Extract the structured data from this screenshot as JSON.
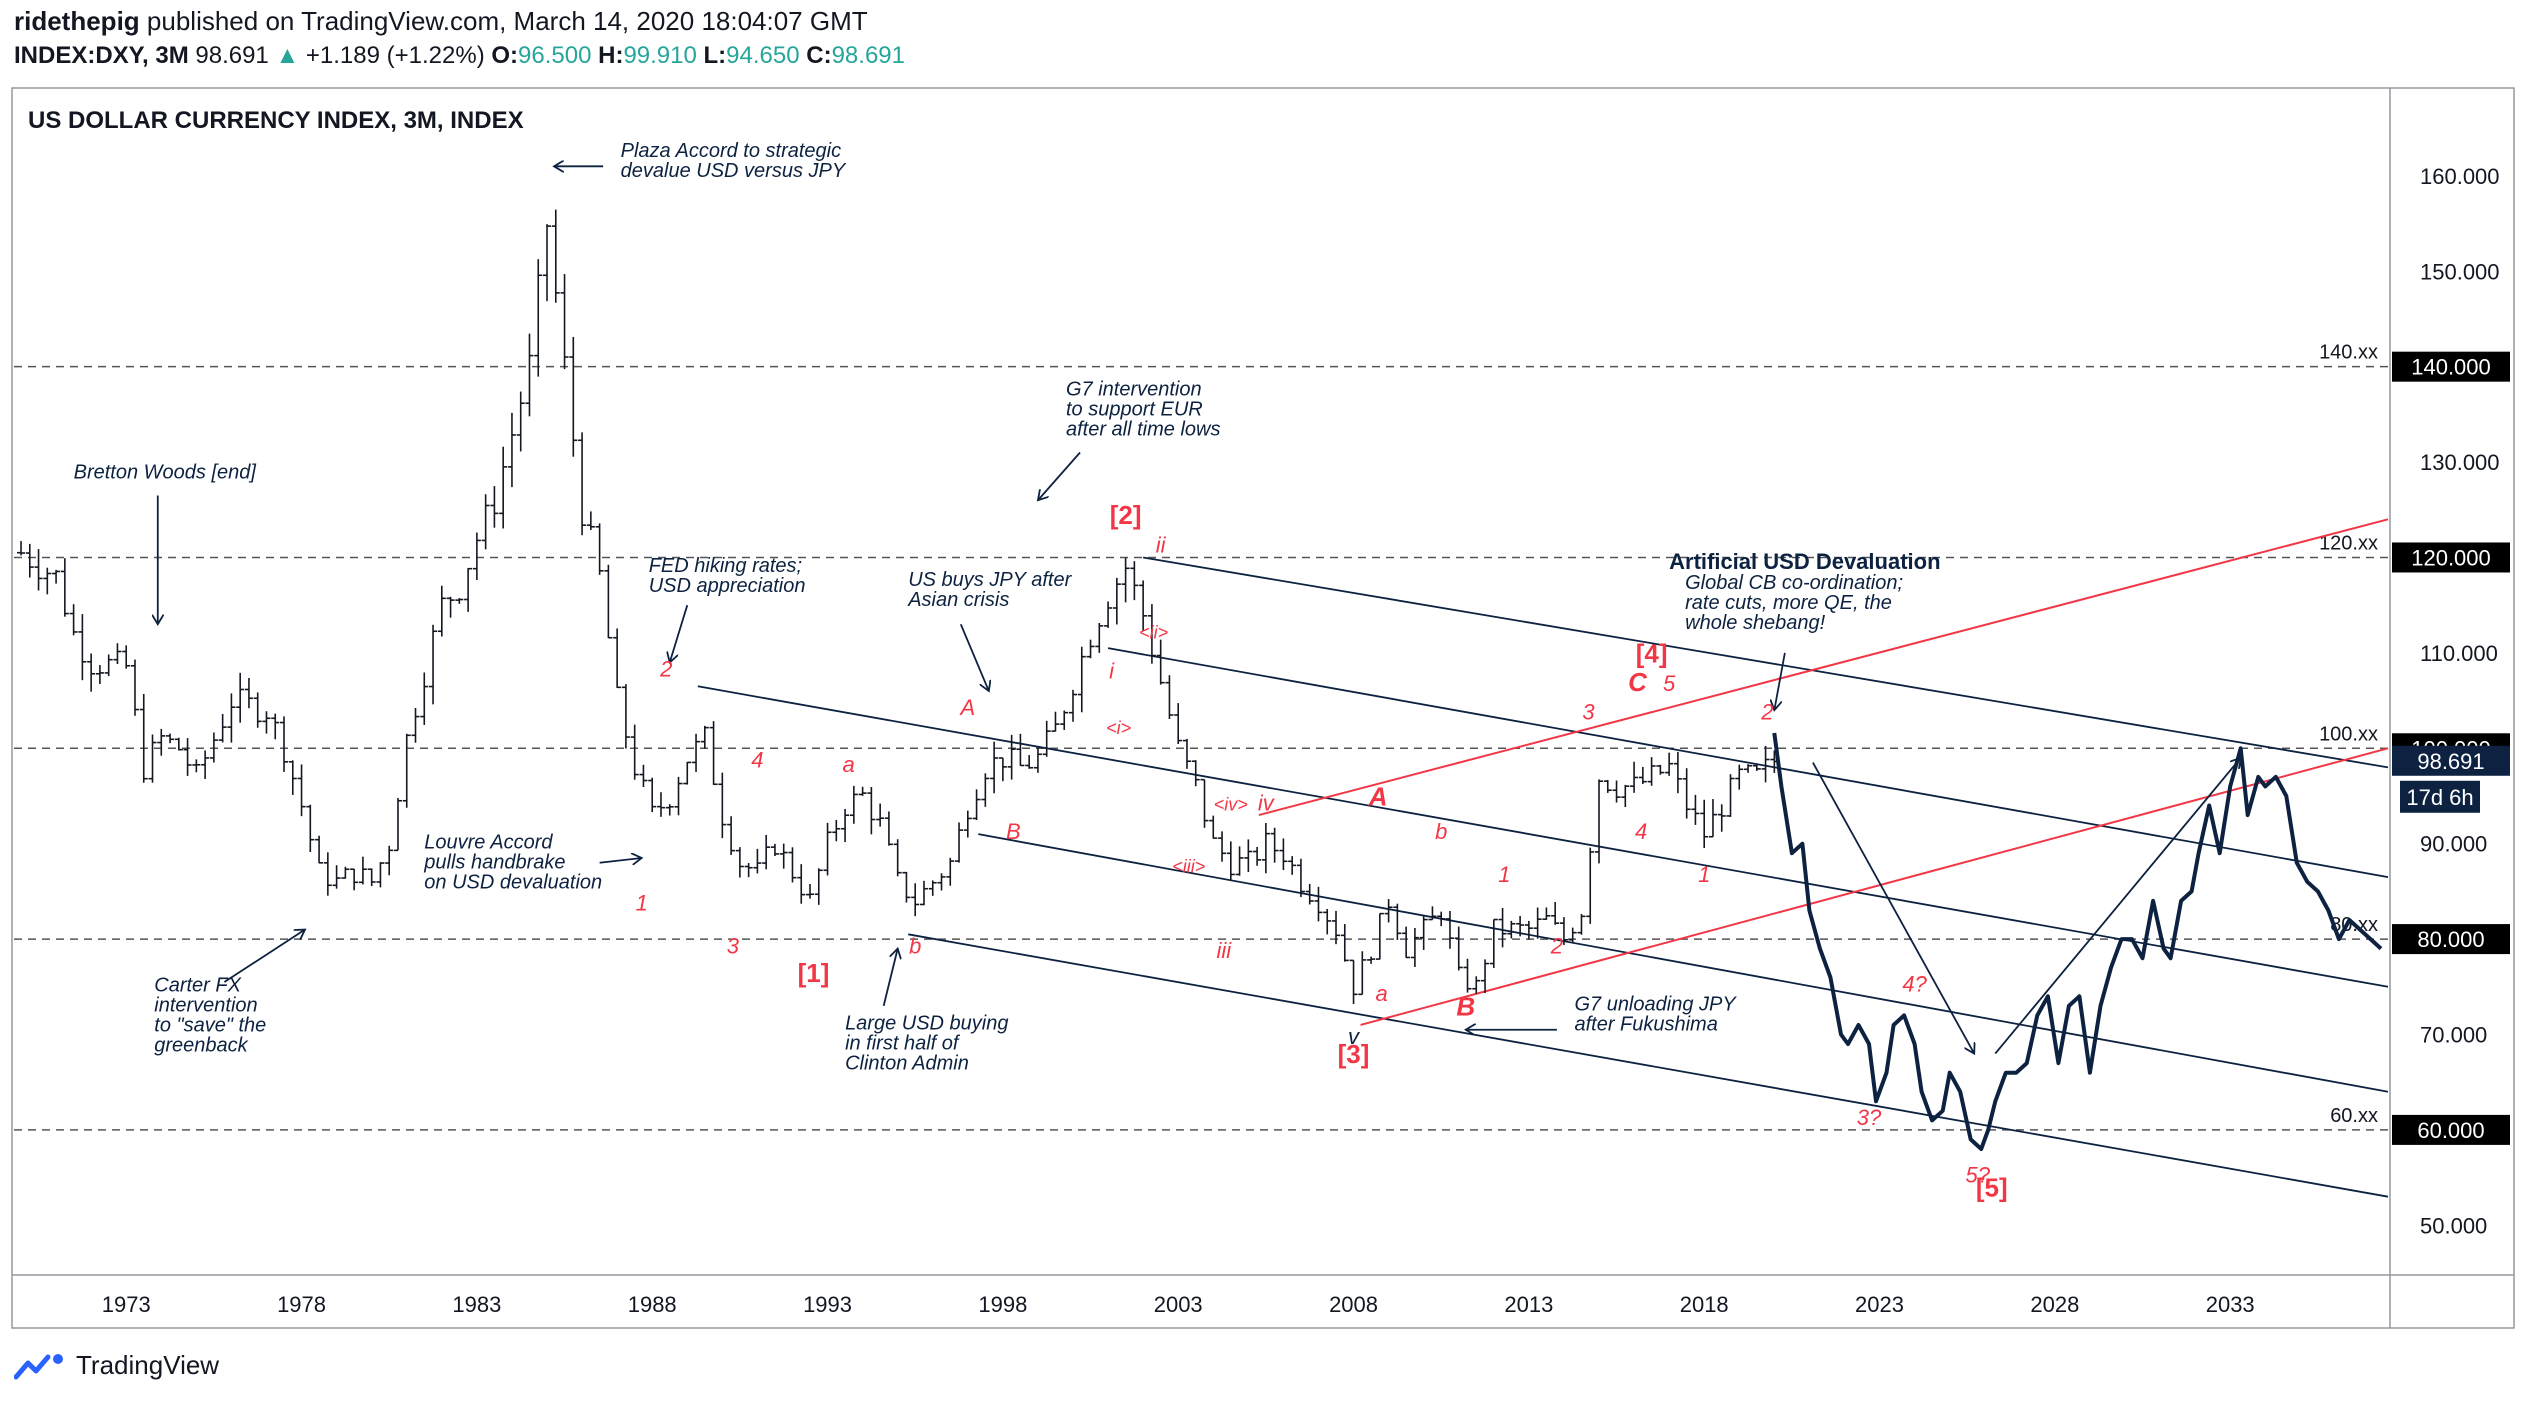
{
  "header": {
    "author": "ridethepig",
    "published_text": "published on TradingView.com, March 14, 2020 18:04:07 GMT",
    "symbol": "INDEX:DXY, 3M",
    "last": "98.691",
    "change": "+1.189 (+1.22%)",
    "o_label": "O:",
    "o_value": "96.500",
    "h_label": "H:",
    "h_value": "99.910",
    "l_label": "L:",
    "l_value": "94.650",
    "c_label": "C:",
    "c_value": "98.691"
  },
  "footer": {
    "brand": "TradingView"
  },
  "colors": {
    "navy": "#0d2240",
    "red": "#f23645",
    "up": "#26a69a",
    "bar": "#131722"
  },
  "chart_data": {
    "type": "line",
    "title": "US DOLLAR CURRENCY INDEX, 3M, INDEX",
    "xlim": [
      1969.8,
      2037.5
    ],
    "ylim": [
      45,
      169
    ],
    "x_ticks": [
      1973,
      1978,
      1983,
      1988,
      1993,
      1998,
      2003,
      2008,
      2013,
      2018,
      2023,
      2028,
      2033
    ],
    "y_ticks": [
      "160.000",
      "150.000",
      "130.000",
      "110.000",
      "90.000",
      "70.000",
      "50.000"
    ],
    "y_tick_values": [
      160,
      150,
      130,
      110,
      90,
      70,
      50
    ],
    "highlighted_ticks": [
      {
        "label": "140.000",
        "value": 140
      },
      {
        "label": "120.000",
        "value": 120
      },
      {
        "label": "100.000",
        "value": 100
      },
      {
        "label": "80.000",
        "value": 80
      },
      {
        "label": "60.000",
        "value": 60
      }
    ],
    "current": {
      "label": "98.691",
      "value": 98.691,
      "countdown": "17d 6h"
    },
    "horizontal_levels": [
      {
        "value": 140,
        "label": "140.xx"
      },
      {
        "value": 120,
        "label": "120.xx"
      },
      {
        "value": 100,
        "label": "100.xx"
      },
      {
        "value": 80,
        "label": "80.xx"
      },
      {
        "value": 60,
        "label": "60.xx"
      }
    ],
    "ohlc_path": [
      [
        1970.0,
        120.5
      ],
      [
        1971.0,
        118
      ],
      [
        1971.5,
        112
      ],
      [
        1972.0,
        109
      ],
      [
        1973.0,
        108.5
      ],
      [
        1973.5,
        98
      ],
      [
        1974.0,
        101
      ],
      [
        1974.5,
        100
      ],
      [
        1975.0,
        97
      ],
      [
        1975.5,
        101
      ],
      [
        1976.0,
        105
      ],
      [
        1977.0,
        104
      ],
      [
        1977.5,
        100
      ],
      [
        1978.0,
        94
      ],
      [
        1978.5,
        87
      ],
      [
        1979.0,
        86
      ],
      [
        1979.5,
        87
      ],
      [
        1980.0,
        86
      ],
      [
        1980.5,
        90
      ],
      [
        1981.0,
        101
      ],
      [
        1981.5,
        108
      ],
      [
        1982.0,
        115
      ],
      [
        1982.5,
        117
      ],
      [
        1983.0,
        122
      ],
      [
        1983.5,
        126
      ],
      [
        1984.0,
        133
      ],
      [
        1984.5,
        140
      ],
      [
        1985.0,
        155
      ],
      [
        1985.5,
        140
      ],
      [
        1986.0,
        125
      ],
      [
        1986.5,
        118
      ],
      [
        1987.0,
        105
      ],
      [
        1987.5,
        98
      ],
      [
        1988.0,
        93
      ],
      [
        1988.5,
        95
      ],
      [
        1989.0,
        99
      ],
      [
        1989.5,
        101
      ],
      [
        1990.0,
        93
      ],
      [
        1990.5,
        88
      ],
      [
        1991.0,
        87
      ],
      [
        1991.5,
        90
      ],
      [
        1992.0,
        87
      ],
      [
        1992.5,
        84
      ],
      [
        1993.0,
        90
      ],
      [
        1993.5,
        94
      ],
      [
        1994.0,
        95
      ],
      [
        1994.5,
        92
      ],
      [
        1995.0,
        86
      ],
      [
        1995.5,
        84
      ],
      [
        1996.0,
        86
      ],
      [
        1996.5,
        88
      ],
      [
        1997.0,
        94
      ],
      [
        1997.5,
        98
      ],
      [
        1998.0,
        99
      ],
      [
        1998.5,
        98
      ],
      [
        1999.0,
        99
      ],
      [
        1999.5,
        102
      ],
      [
        2000.0,
        107
      ],
      [
        2000.5,
        112
      ],
      [
        2001.0,
        116
      ],
      [
        2001.5,
        119
      ],
      [
        2002.0,
        114
      ],
      [
        2002.5,
        107
      ],
      [
        2003.0,
        100
      ],
      [
        2003.5,
        96
      ],
      [
        2004.0,
        90
      ],
      [
        2004.5,
        88
      ],
      [
        2005.0,
        88
      ],
      [
        2005.5,
        90
      ],
      [
        2006.0,
        89
      ],
      [
        2006.5,
        86
      ],
      [
        2007.0,
        84
      ],
      [
        2007.5,
        81
      ],
      [
        2008.0,
        75
      ],
      [
        2008.5,
        79
      ],
      [
        2009.0,
        84
      ],
      [
        2009.5,
        79
      ],
      [
        2010.0,
        81
      ],
      [
        2010.5,
        83
      ],
      [
        2011.0,
        76
      ],
      [
        2011.5,
        75
      ],
      [
        2012.0,
        81
      ],
      [
        2012.5,
        81
      ],
      [
        2013.0,
        81
      ],
      [
        2013.5,
        82
      ],
      [
        2014.0,
        80
      ],
      [
        2014.5,
        83
      ],
      [
        2015.0,
        97
      ],
      [
        2015.5,
        96
      ],
      [
        2016.0,
        96
      ],
      [
        2016.5,
        97
      ],
      [
        2017.0,
        98
      ],
      [
        2017.5,
        94
      ],
      [
        2018.0,
        91
      ],
      [
        2018.5,
        94
      ],
      [
        2019.0,
        97
      ],
      [
        2019.5,
        97
      ],
      [
        2020.0,
        98.7
      ]
    ],
    "projection": {
      "name": "projection",
      "x": [
        2020.0,
        2020.2,
        2020.5,
        2020.8,
        2021.0,
        2021.3,
        2021.6,
        2021.9,
        2022.1,
        2022.4,
        2022.7,
        2022.9,
        2023.2,
        2023.4,
        2023.7,
        2024.0,
        2024.2,
        2024.5,
        2024.8,
        2025.0,
        2025.3,
        2025.6,
        2025.9,
        2026.1,
        2026.3,
        2026.6,
        2026.9,
        2027.2,
        2027.5,
        2027.8,
        2028.1,
        2028.4,
        2028.7,
        2029.0,
        2029.3,
        2029.6,
        2029.9,
        2030.2,
        2030.5,
        2030.8,
        2031.1,
        2031.3,
        2031.6,
        2031.9,
        2032.1,
        2032.4,
        2032.7,
        2033.0,
        2033.3,
        2033.5,
        2033.8,
        2034.0,
        2034.3,
        2034.6,
        2034.9,
        2035.2,
        2035.5,
        2035.8,
        2036.1,
        2036.4,
        2036.7,
        2037.0,
        2037.3
      ],
      "y": [
        101.6,
        96,
        89,
        90,
        83,
        79,
        76,
        70,
        69,
        71,
        69,
        63,
        66,
        71,
        72,
        69,
        64,
        61,
        62,
        66,
        64,
        59,
        58,
        60,
        63,
        66,
        66,
        67,
        72,
        74,
        67,
        73,
        74,
        66,
        73,
        77,
        80,
        80,
        78,
        84,
        79,
        78,
        84,
        85,
        89,
        94,
        89,
        96,
        100,
        93,
        97,
        96,
        97,
        95,
        88,
        86,
        85,
        83,
        80,
        82,
        81,
        80,
        79
      ]
    },
    "trendlines_red": [
      {
        "x1": 2008.2,
        "y1": 71,
        "x2": 2037.5,
        "y2": 100
      },
      {
        "x1": 2005.3,
        "y1": 93,
        "x2": 2037.5,
        "y2": 124
      }
    ],
    "channel_lines": [
      {
        "x1": 2002.0,
        "y1": 120,
        "x2": 2037.5,
        "y2": 98
      },
      {
        "x1": 2001.0,
        "y1": 110.5,
        "x2": 2037.5,
        "y2": 86.5
      },
      {
        "x1": 1989.3,
        "y1": 106.5,
        "x2": 2037.5,
        "y2": 75
      },
      {
        "x1": 1997.3,
        "y1": 91,
        "x2": 2037.5,
        "y2": 64
      },
      {
        "x1": 1995.3,
        "y1": 80.5,
        "x2": 2037.5,
        "y2": 53
      }
    ],
    "wave_labels": [
      {
        "text": "[1]",
        "x": 1992.6,
        "y": 75.5,
        "style": "bold"
      },
      {
        "text": "[2]",
        "x": 2001.5,
        "y": 123.5,
        "style": "bold"
      },
      {
        "text": "[3]",
        "x": 2008.0,
        "y": 67,
        "style": "bold"
      },
      {
        "text": "[4]",
        "x": 2016.5,
        "y": 109,
        "style": "bold"
      },
      {
        "text": "[5]",
        "x": 2026.2,
        "y": 53,
        "style": "bold"
      },
      {
        "text": "A",
        "x": 2008.7,
        "y": 94,
        "style": "bold"
      },
      {
        "text": "B",
        "x": 2011.2,
        "y": 72,
        "style": "bold"
      },
      {
        "text": "C",
        "x": 2016.1,
        "y": 106,
        "style": "bold"
      },
      {
        "text": "5",
        "x": 2017.0,
        "y": 106,
        "style": "italic"
      },
      {
        "text": "ii",
        "x": 2002.5,
        "y": 120.5,
        "style": "italic"
      },
      {
        "text": "i",
        "x": 2001.1,
        "y": 107.3,
        "style": "italic"
      },
      {
        "text": "<ii>",
        "x": 2002.3,
        "y": 111.5,
        "style": "italic-small"
      },
      {
        "text": "<i>",
        "x": 2001.3,
        "y": 101.5,
        "style": "italic-small"
      },
      {
        "text": "<iv>",
        "x": 2004.5,
        "y": 93.5,
        "style": "italic-small"
      },
      {
        "text": "iv",
        "x": 2005.5,
        "y": 93.5,
        "style": "italic"
      },
      {
        "text": "<iii>",
        "x": 2003.3,
        "y": 87,
        "style": "italic-small"
      },
      {
        "text": "iii",
        "x": 2004.3,
        "y": 78,
        "style": "italic"
      },
      {
        "text": "v",
        "x": 2008.0,
        "y": 69,
        "style": "italic-navy"
      },
      {
        "text": "a",
        "x": 2008.8,
        "y": 73.5,
        "style": "italic"
      },
      {
        "text": "b",
        "x": 2010.5,
        "y": 90.5,
        "style": "italic"
      },
      {
        "text": "A",
        "x": 1997.0,
        "y": 103.5,
        "style": "italic"
      },
      {
        "text": "B",
        "x": 1998.3,
        "y": 90.5,
        "style": "italic"
      },
      {
        "text": "a",
        "x": 1993.6,
        "y": 97.5,
        "style": "italic"
      },
      {
        "text": "b",
        "x": 1995.5,
        "y": 78.5,
        "style": "italic"
      },
      {
        "text": "4",
        "x": 1991.0,
        "y": 98,
        "style": "italic"
      },
      {
        "text": "3",
        "x": 1990.3,
        "y": 78.5,
        "style": "italic"
      },
      {
        "text": "2",
        "x": 1988.4,
        "y": 107.5,
        "style": "italic"
      },
      {
        "text": "1",
        "x": 1987.7,
        "y": 83,
        "style": "italic"
      },
      {
        "text": "3",
        "x": 2014.7,
        "y": 103,
        "style": "italic"
      },
      {
        "text": "4",
        "x": 2016.2,
        "y": 90.5,
        "style": "italic"
      },
      {
        "text": "1",
        "x": 2012.3,
        "y": 86,
        "style": "italic"
      },
      {
        "text": "2",
        "x": 2013.8,
        "y": 78.5,
        "style": "italic"
      },
      {
        "text": "1",
        "x": 2018.0,
        "y": 86,
        "style": "italic"
      },
      {
        "text": "2",
        "x": 2019.8,
        "y": 103,
        "style": "italic"
      },
      {
        "text": "3?",
        "x": 2022.7,
        "y": 60.5,
        "style": "italic"
      },
      {
        "text": "4?",
        "x": 2024.0,
        "y": 74.5,
        "style": "italic"
      },
      {
        "text": "5?",
        "x": 2025.8,
        "y": 54.5,
        "style": "italic"
      }
    ],
    "annotations": [
      {
        "lines": [
          "Plaza Accord to strategic",
          "devalue USD versus JPY"
        ],
        "x": 1987.1,
        "y": 162,
        "bold_first": false
      },
      {
        "lines": [
          "G7 intervention",
          "to support EUR",
          "after all time lows"
        ],
        "x": 1999.8,
        "y": 137,
        "bold_first": false
      },
      {
        "lines": [
          "Bretton Woods [end]"
        ],
        "x": 1971.5,
        "y": 128.3,
        "bold_first": false
      },
      {
        "lines": [
          "FED hiking rates;",
          "USD appreciation"
        ],
        "x": 1987.9,
        "y": 118.5,
        "bold_first": false
      },
      {
        "lines": [
          "US buys JPY after",
          "Asian crisis"
        ],
        "x": 1995.3,
        "y": 117,
        "bold_first": false
      },
      {
        "lines": [
          "Artificial USD Devaluation",
          "Global CB co-ordination;",
          "rate cuts, more QE, the",
          "whole shebang!"
        ],
        "x": 2017.0,
        "y": 118.8,
        "bold_first": true
      },
      {
        "lines": [
          "Louvre Accord",
          "pulls handbrake",
          "on USD devaluation"
        ],
        "x": 1981.5,
        "y": 89.5,
        "bold_first": false
      },
      {
        "lines": [
          "Carter FX",
          "intervention",
          "to \"save\" the",
          "greenback"
        ],
        "x": 1973.8,
        "y": 74.5,
        "bold_first": false
      },
      {
        "lines": [
          "Large USD buying",
          "in first half of",
          "Clinton Admin"
        ],
        "x": 1993.5,
        "y": 70.5,
        "bold_first": false
      },
      {
        "lines": [
          "G7 unloading JPY",
          "after Fukushima"
        ],
        "x": 2014.3,
        "y": 72.5,
        "bold_first": false
      }
    ],
    "arrows": [
      {
        "x1": 1986.6,
        "y1": 161,
        "x2": 1985.2,
        "y2": 161
      },
      {
        "x1": 2000.2,
        "y1": 131,
        "x2": 1999.0,
        "y2": 126
      },
      {
        "x1": 1973.9,
        "y1": 126.5,
        "x2": 1973.9,
        "y2": 113
      },
      {
        "x1": 1989.0,
        "y1": 115,
        "x2": 1988.5,
        "y2": 109
      },
      {
        "x1": 1996.8,
        "y1": 113,
        "x2": 1997.6,
        "y2": 106
      },
      {
        "x1": 2020.3,
        "y1": 110,
        "x2": 2020.0,
        "y2": 104
      },
      {
        "x1": 1986.5,
        "y1": 88,
        "x2": 1987.7,
        "y2": 88.5
      },
      {
        "x1": 1975.8,
        "y1": 75.5,
        "x2": 1978.1,
        "y2": 81
      },
      {
        "x1": 1994.6,
        "y1": 73,
        "x2": 1995.0,
        "y2": 79
      },
      {
        "x1": 2013.8,
        "y1": 70.5,
        "x2": 2011.2,
        "y2": 70.5
      },
      {
        "x1": 2021.1,
        "y1": 98.5,
        "x2": 2025.7,
        "y2": 68
      },
      {
        "x1": 2026.3,
        "y1": 68,
        "x2": 2033.3,
        "y2": 99
      }
    ],
    "grid": false,
    "legend": "none"
  }
}
